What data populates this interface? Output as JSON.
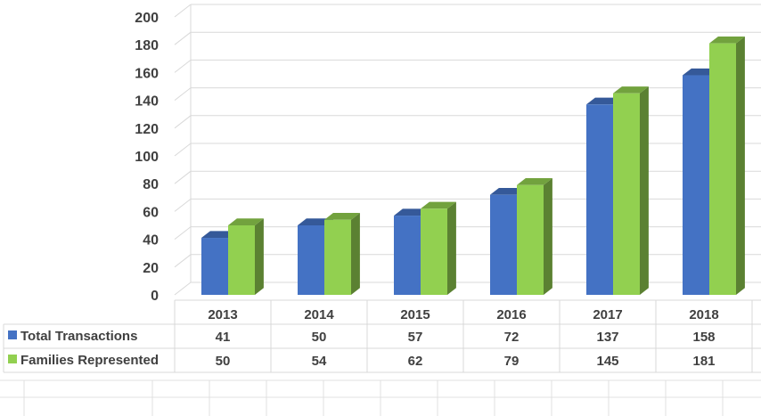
{
  "chart_data": {
    "type": "bar",
    "categories": [
      "2013",
      "2014",
      "2015",
      "2016",
      "2017",
      "2018"
    ],
    "series": [
      {
        "name": "Total Transactions",
        "values": [
          41,
          50,
          57,
          72,
          137,
          158
        ],
        "color": "#4472C4"
      },
      {
        "name": "Families Represented",
        "values": [
          50,
          54,
          62,
          79,
          145,
          181
        ],
        "color": "#92D050"
      }
    ],
    "yticks": [
      "0",
      "20",
      "40",
      "60",
      "80",
      "100",
      "120",
      "140",
      "160",
      "180",
      "200"
    ],
    "ylim": [
      0,
      200
    ],
    "grid": true,
    "three_d": true,
    "data_table": true
  }
}
